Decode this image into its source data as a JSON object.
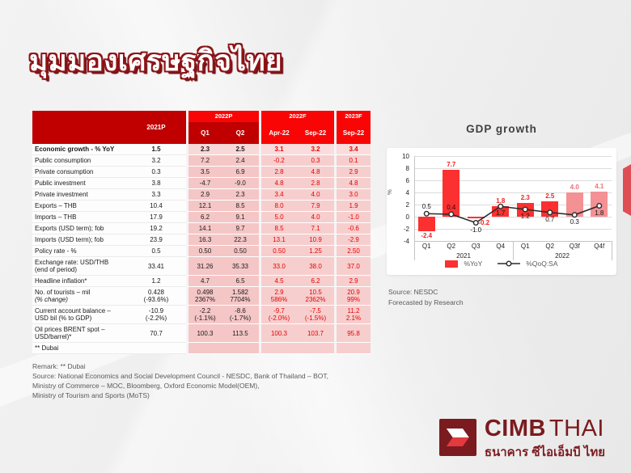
{
  "title": "มุมมองเศรษฐกิจไทย",
  "table": {
    "col_groups": [
      "2022P",
      "2022F",
      "2023F"
    ],
    "columns": [
      "2021P",
      "Q1",
      "Q2",
      "Apr-22",
      "Sep-22",
      "Sep-22"
    ],
    "rows": [
      {
        "label": "Economic growth - % YoY",
        "bold": true,
        "values": [
          "1.5",
          "2.3",
          "2.5",
          "3.1",
          "3.2",
          "3.4"
        ]
      },
      {
        "label": "Public consumption",
        "values": [
          "3.2",
          "7.2",
          "2.4",
          "-0.2",
          "0.3",
          "0.1"
        ]
      },
      {
        "label": "Private consumption",
        "values": [
          "0.3",
          "3.5",
          "6.9",
          "2.8",
          "4.8",
          "2.9"
        ]
      },
      {
        "label": "Public investment",
        "values": [
          "3.8",
          "-4.7",
          "-9.0",
          "4.8",
          "2.8",
          "4.8"
        ]
      },
      {
        "label": "Private investment",
        "values": [
          "3.3",
          "2.9",
          "2.3",
          "3.4",
          "4.0",
          "3.0"
        ]
      },
      {
        "label": "Exports – THB",
        "values": [
          "10.4",
          "12.1",
          "8.5",
          "8.0",
          "7.9",
          "1.9"
        ]
      },
      {
        "label": "Imports – THB",
        "values": [
          "17.9",
          "6.2",
          "9.1",
          "5.0",
          "4.0",
          "-1.0"
        ]
      },
      {
        "label": "Exports (USD term); fob",
        "values": [
          "19.2",
          "14.1",
          "9.7",
          "8.5",
          "7.1",
          "-0.6"
        ]
      },
      {
        "label": "Imports (USD term); fob",
        "values": [
          "23.9",
          "16.3",
          "22.3",
          "13.1",
          "10.9",
          "-2.9"
        ]
      },
      {
        "label": "Policy rate - %",
        "values": [
          "0.5",
          "0.50",
          "0.50",
          "0.50",
          "1.25",
          "2.50"
        ]
      },
      {
        "label": "Exchange rate: USD/THB",
        "label2": "(end of period)",
        "values": [
          "33.41",
          "31.26",
          "35.33",
          "33.0",
          "38.0",
          "37.0"
        ]
      },
      {
        "label": "Headline inflation*",
        "values": [
          "1.2",
          "4.7",
          "6.5",
          "4.5",
          "6.2",
          "2.9"
        ]
      },
      {
        "label": "No. of tourists – mil",
        "label2": "(% change)",
        "italic2": true,
        "values": [
          "0.428",
          "0.498",
          "1.582",
          "2.9",
          "10.5",
          "20.9"
        ],
        "values2": [
          "(-93.6%)",
          "2367%",
          "7704%",
          "586%",
          "2362%",
          "99%"
        ]
      },
      {
        "label": "Current account balance –",
        "label2": "USD bil (% to GDP)",
        "values": [
          "-10.9",
          "-2.2",
          "-8.6",
          "-9.7",
          "-7.5",
          "11.2"
        ],
        "values2": [
          "(-2.2%)",
          "(-1.1%)",
          "(-1.7%)",
          "(-2.0%)",
          "(-1.5%)",
          "2.1%"
        ]
      },
      {
        "label": "Oil prices BRENT spot –",
        "label2": "USD/barrel)*",
        "values": [
          "70.7",
          "100.3",
          "113.5",
          "100.3",
          "103.7",
          "95.8"
        ]
      },
      {
        "label": "** Dubai",
        "values": [
          "",
          "",
          "",
          "",
          "",
          ""
        ]
      }
    ]
  },
  "remark": {
    "lines": [
      "Remark: ** Dubai",
      "Source: National Economics and Social Development Council - NESDC, Bank of Thailand – BOT,",
      "Ministry of Commerce – MOC, Bloomberg, Oxford Economic Model(OEM),",
      "Ministry of Tourism and Sports (MoTS)"
    ]
  },
  "chart_data": {
    "type": "bar+line",
    "title": "GDP growth",
    "ylabel": "%",
    "ylim": [
      -4,
      10
    ],
    "ytick_step": 2,
    "grid": true,
    "categories": [
      "Q1",
      "Q2",
      "Q3",
      "Q4",
      "Q1",
      "Q2",
      "Q3f",
      "Q4f"
    ],
    "group_labels": [
      "2021",
      "2022"
    ],
    "series": [
      {
        "name": "%YoY",
        "type": "bar",
        "values": [
          -2.4,
          7.7,
          -0.2,
          1.8,
          2.3,
          2.5,
          4.0,
          4.1
        ],
        "forecast_from_index": 6
      },
      {
        "name": "%QoQ:SA",
        "type": "line",
        "values": [
          0.5,
          0.4,
          -1.0,
          1.7,
          1.2,
          0.7,
          0.3,
          1.8
        ]
      }
    ],
    "legend_position": "bottom",
    "source": "Source: NESDC",
    "note": "Forecasted by Research"
  },
  "logo": {
    "brand_bold": "CIMB",
    "brand_light": "THAI",
    "thai": "ธนาคาร ซีไอเอ็มบี ไทย"
  },
  "colors": {
    "header_dark_red": "#c00000",
    "header_bright_red": "#fa0505",
    "cell_pink": "#f5c6c6",
    "forecast_text_red": "#e80000",
    "bar_red": "#fc3030",
    "bar_forecast_pink": "#f49194",
    "line_dark": "#2b2b2b",
    "brand_maroon": "#7b1b1f"
  }
}
